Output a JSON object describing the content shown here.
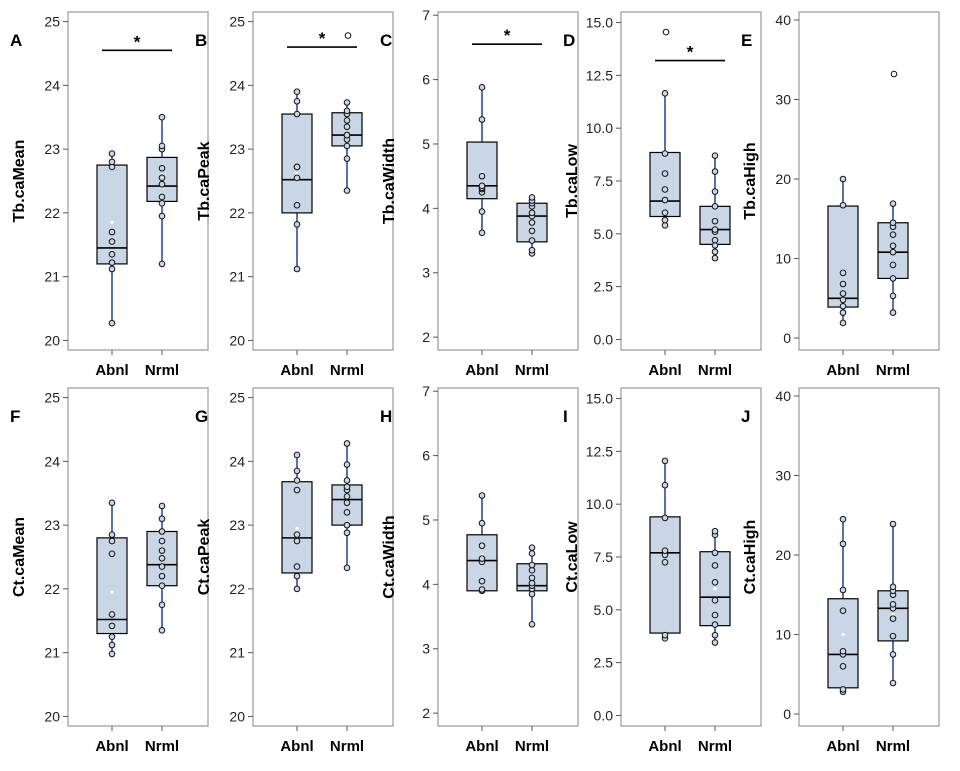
{
  "figure": {
    "colors": {
      "box_fill": "#c9d6e6",
      "whisker": "#2f4f9a",
      "box_stroke": "#000000",
      "frame": "#9a9a9a",
      "point_fill": "#c9d6e6",
      "mean_dot": "#ffffff"
    }
  },
  "chart_data": [
    {
      "id": "A",
      "panel_label": "A",
      "type": "box",
      "ylabel": "Tb.caMean",
      "categories": [
        "Abnl",
        "Nrml"
      ],
      "ylim": [
        19.85,
        25.15
      ],
      "yticks": [
        20,
        21,
        22,
        23,
        24,
        25
      ],
      "tick_labels": [
        "20",
        "21",
        "22",
        "23",
        "24",
        "25"
      ],
      "significance": {
        "label": "*",
        "y": 24.55
      },
      "boxes": [
        {
          "category": "Abnl",
          "q1": 21.2,
          "median": 21.45,
          "q3": 22.75,
          "whisker_low": 20.27,
          "whisker_high": 22.93,
          "mean": 21.85,
          "points": [
            20.27,
            21.12,
            21.22,
            21.35,
            21.55,
            21.7,
            22.72,
            22.8,
            22.93
          ],
          "outliers": []
        },
        {
          "category": "Nrml",
          "q1": 22.18,
          "median": 22.42,
          "q3": 22.87,
          "whisker_low": 21.2,
          "whisker_high": 23.5,
          "mean": 22.43,
          "points": [
            21.2,
            21.95,
            22.15,
            22.25,
            22.45,
            22.55,
            22.7,
            23.0,
            23.05,
            23.5
          ],
          "outliers": []
        }
      ]
    },
    {
      "id": "B",
      "panel_label": "B",
      "type": "box",
      "ylabel": "Tb.caPeak",
      "categories": [
        "Abnl",
        "Nrml"
      ],
      "ylim": [
        19.85,
        25.15
      ],
      "yticks": [
        20,
        21,
        22,
        23,
        24,
        25
      ],
      "tick_labels": [
        "20",
        "21",
        "22",
        "23",
        "24",
        "25"
      ],
      "significance": {
        "label": "*",
        "y": 24.6
      },
      "boxes": [
        {
          "category": "Abnl",
          "q1": 22.0,
          "median": 22.52,
          "q3": 23.55,
          "whisker_low": 21.12,
          "whisker_high": 23.9,
          "mean": 22.62,
          "points": [
            21.12,
            21.82,
            22.12,
            22.55,
            22.72,
            22.72,
            23.55,
            23.75,
            23.9
          ],
          "outliers": []
        },
        {
          "category": "Nrml",
          "q1": 23.05,
          "median": 23.22,
          "q3": 23.57,
          "whisker_low": 22.35,
          "whisker_high": 23.73,
          "mean": 23.2,
          "points": [
            22.35,
            22.85,
            23.05,
            23.15,
            23.22,
            23.22,
            23.35,
            23.45,
            23.55,
            23.6,
            23.73
          ],
          "outliers": [
            24.78
          ]
        }
      ]
    },
    {
      "id": "C",
      "panel_label": "C",
      "type": "box",
      "ylabel": "Tb.caWidth",
      "categories": [
        "Abnl",
        "Nrml"
      ],
      "ylim": [
        1.8,
        7.05
      ],
      "yticks": [
        2,
        3,
        4,
        5,
        6,
        7
      ],
      "tick_labels": [
        "2",
        "3",
        "4",
        "5",
        "6",
        "7"
      ],
      "significance": {
        "label": "*",
        "y": 6.55
      },
      "boxes": [
        {
          "category": "Abnl",
          "q1": 4.15,
          "median": 4.35,
          "q3": 5.03,
          "whisker_low": 3.62,
          "whisker_high": 5.88,
          "mean": 4.55,
          "points": [
            3.62,
            3.95,
            4.25,
            4.3,
            4.32,
            4.35,
            4.5,
            5.38,
            5.88
          ],
          "outliers": []
        },
        {
          "category": "Nrml",
          "q1": 3.48,
          "median": 3.88,
          "q3": 4.08,
          "whisker_low": 3.3,
          "whisker_high": 4.17,
          "mean": 3.8,
          "points": [
            3.3,
            3.35,
            3.5,
            3.65,
            3.78,
            3.88,
            3.93,
            4.03,
            4.08,
            4.12,
            4.17
          ],
          "outliers": []
        }
      ]
    },
    {
      "id": "D",
      "panel_label": "D",
      "type": "box",
      "ylabel": "Tb.caLow",
      "categories": [
        "Abnl",
        "Nrml"
      ],
      "ylim": [
        -0.5,
        15.5
      ],
      "yticks": [
        0,
        2.5,
        5,
        7.5,
        10,
        12.5,
        15
      ],
      "tick_labels": [
        "0.0",
        "2.5",
        "5.0",
        "7.5",
        "10.0",
        "12.5",
        "15.0"
      ],
      "significance": {
        "label": "*",
        "y": 13.2
      },
      "boxes": [
        {
          "category": "Abnl",
          "q1": 5.82,
          "median": 6.55,
          "q3": 8.85,
          "whisker_low": 5.4,
          "whisker_high": 11.65,
          "mean": 7.2,
          "points": [
            5.4,
            5.65,
            6.0,
            6.6,
            7.1,
            7.85,
            8.8,
            11.65
          ],
          "outliers": [
            14.55
          ]
        },
        {
          "category": "Nrml",
          "q1": 4.5,
          "median": 5.2,
          "q3": 6.3,
          "whisker_low": 3.85,
          "whisker_high": 8.7,
          "mean": 5.7,
          "points": [
            3.85,
            4.15,
            4.45,
            4.7,
            5.1,
            5.2,
            5.6,
            6.3,
            7.0,
            7.95,
            8.7
          ],
          "outliers": []
        }
      ]
    },
    {
      "id": "E",
      "panel_label": "E",
      "type": "box",
      "ylabel": "Tb.caHigh",
      "categories": [
        "Abnl",
        "Nrml"
      ],
      "ylim": [
        -1.5,
        41.0
      ],
      "yticks": [
        0,
        10,
        20,
        30,
        40
      ],
      "tick_labels": [
        "0",
        "10",
        "20",
        "30",
        "40"
      ],
      "significance": null,
      "boxes": [
        {
          "category": "Abnl",
          "q1": 3.9,
          "median": 5.0,
          "q3": 16.6,
          "whisker_low": 1.9,
          "whisker_high": 20.0,
          "mean": 8.5,
          "points": [
            1.9,
            3.2,
            4.0,
            4.8,
            5.6,
            6.8,
            8.2,
            16.7,
            20.0
          ],
          "outliers": []
        },
        {
          "category": "Nrml",
          "q1": 7.5,
          "median": 10.8,
          "q3": 14.5,
          "whisker_low": 3.2,
          "whisker_high": 16.9,
          "mean": 10.8,
          "points": [
            3.2,
            5.3,
            7.5,
            9.2,
            10.8,
            11.6,
            13.0,
            14.0,
            14.5,
            16.9
          ],
          "outliers": [
            33.2
          ]
        }
      ]
    },
    {
      "id": "F",
      "panel_label": "F",
      "type": "box",
      "ylabel": "Ct.caMean",
      "categories": [
        "Abnl",
        "Nrml"
      ],
      "ylim": [
        19.85,
        25.15
      ],
      "yticks": [
        20,
        21,
        22,
        23,
        24,
        25
      ],
      "tick_labels": [
        "20",
        "21",
        "22",
        "23",
        "24",
        "25"
      ],
      "significance": null,
      "boxes": [
        {
          "category": "Abnl",
          "q1": 21.3,
          "median": 21.52,
          "q3": 22.8,
          "whisker_low": 20.98,
          "whisker_high": 23.35,
          "mean": 21.95,
          "points": [
            20.98,
            21.12,
            21.25,
            21.42,
            21.6,
            22.55,
            22.75,
            22.85,
            23.35
          ],
          "outliers": []
        },
        {
          "category": "Nrml",
          "q1": 22.05,
          "median": 22.38,
          "q3": 22.9,
          "whisker_low": 21.35,
          "whisker_high": 23.3,
          "mean": 22.35,
          "points": [
            21.35,
            21.75,
            22.05,
            22.2,
            22.35,
            22.48,
            22.6,
            22.75,
            22.9,
            23.1,
            23.3
          ],
          "outliers": []
        }
      ]
    },
    {
      "id": "G",
      "panel_label": "G",
      "type": "box",
      "ylabel": "Ct.caPeak",
      "categories": [
        "Abnl",
        "Nrml"
      ],
      "ylim": [
        19.85,
        25.15
      ],
      "yticks": [
        20,
        21,
        22,
        23,
        24,
        25
      ],
      "tick_labels": [
        "20",
        "21",
        "22",
        "23",
        "24",
        "25"
      ],
      "significance": null,
      "boxes": [
        {
          "category": "Abnl",
          "q1": 22.25,
          "median": 22.8,
          "q3": 23.68,
          "whisker_low": 22.0,
          "whisker_high": 24.1,
          "mean": 22.95,
          "points": [
            22.0,
            22.2,
            22.35,
            22.75,
            22.85,
            23.55,
            23.7,
            23.85,
            24.1
          ],
          "outliers": []
        },
        {
          "category": "Nrml",
          "q1": 23.0,
          "median": 23.4,
          "q3": 23.63,
          "whisker_low": 22.33,
          "whisker_high": 24.28,
          "mean": 23.35,
          "points": [
            22.33,
            22.88,
            23.0,
            23.2,
            23.35,
            23.45,
            23.55,
            23.6,
            23.7,
            23.95,
            24.28
          ],
          "outliers": []
        }
      ]
    },
    {
      "id": "H",
      "panel_label": "H",
      "type": "box",
      "ylabel": "Ct.caWidth",
      "categories": [
        "Abnl",
        "Nrml"
      ],
      "ylim": [
        1.8,
        7.05
      ],
      "yticks": [
        2,
        3,
        4,
        5,
        6,
        7
      ],
      "tick_labels": [
        "2",
        "3",
        "4",
        "5",
        "6",
        "7"
      ],
      "significance": null,
      "boxes": [
        {
          "category": "Abnl",
          "q1": 3.9,
          "median": 4.37,
          "q3": 4.77,
          "whisker_low": 3.9,
          "whisker_high": 5.38,
          "mean": 4.45,
          "points": [
            3.9,
            3.92,
            4.05,
            4.35,
            4.4,
            4.6,
            4.95,
            5.38
          ],
          "outliers": []
        },
        {
          "category": "Nrml",
          "q1": 3.9,
          "median": 3.98,
          "q3": 4.32,
          "whisker_low": 3.38,
          "whisker_high": 4.57,
          "mean": 4.05,
          "points": [
            3.38,
            3.85,
            3.93,
            3.98,
            4.02,
            4.1,
            4.22,
            4.3,
            4.48,
            4.57
          ],
          "outliers": []
        }
      ]
    },
    {
      "id": "I",
      "panel_label": "I",
      "type": "box",
      "ylabel": "Ct.caLow",
      "categories": [
        "Abnl",
        "Nrml"
      ],
      "ylim": [
        -0.5,
        15.5
      ],
      "yticks": [
        0,
        2.5,
        5,
        7.5,
        10,
        12.5,
        15
      ],
      "tick_labels": [
        "0.0",
        "2.5",
        "5.0",
        "7.5",
        "10.0",
        "12.5",
        "15.0"
      ],
      "significance": null,
      "boxes": [
        {
          "category": "Abnl",
          "q1": 3.9,
          "median": 7.7,
          "q3": 9.4,
          "whisker_low": 3.65,
          "whisker_high": 12.05,
          "mean": 7.5,
          "points": [
            3.65,
            3.8,
            7.25,
            7.6,
            7.8,
            9.35,
            10.9,
            12.05
          ],
          "outliers": []
        },
        {
          "category": "Nrml",
          "q1": 4.25,
          "median": 5.6,
          "q3": 7.75,
          "whisker_low": 3.45,
          "whisker_high": 8.72,
          "mean": 6.0,
          "points": [
            3.45,
            3.8,
            4.3,
            4.75,
            5.45,
            6.3,
            7.1,
            7.7,
            8.55,
            8.72
          ],
          "outliers": []
        }
      ]
    },
    {
      "id": "J",
      "panel_label": "J",
      "type": "box",
      "ylabel": "Ct.caHigh",
      "categories": [
        "Abnl",
        "Nrml"
      ],
      "ylim": [
        -1.5,
        41.0
      ],
      "yticks": [
        0,
        10,
        20,
        30,
        40
      ],
      "tick_labels": [
        "0",
        "10",
        "20",
        "30",
        "40"
      ],
      "significance": null,
      "boxes": [
        {
          "category": "Abnl",
          "q1": 3.3,
          "median": 7.5,
          "q3": 14.5,
          "whisker_low": 2.8,
          "whisker_high": 24.5,
          "mean": 10.0,
          "points": [
            2.8,
            3.1,
            6.0,
            7.5,
            7.9,
            13.0,
            15.6,
            21.4,
            24.5
          ],
          "outliers": []
        },
        {
          "category": "Nrml",
          "q1": 9.2,
          "median": 13.3,
          "q3": 15.5,
          "whisker_low": 3.9,
          "whisker_high": 23.9,
          "mean": 12.5,
          "points": [
            3.9,
            7.5,
            9.8,
            12.0,
            13.3,
            13.8,
            15.0,
            15.5,
            16.0,
            23.9
          ],
          "outliers": []
        }
      ]
    }
  ]
}
